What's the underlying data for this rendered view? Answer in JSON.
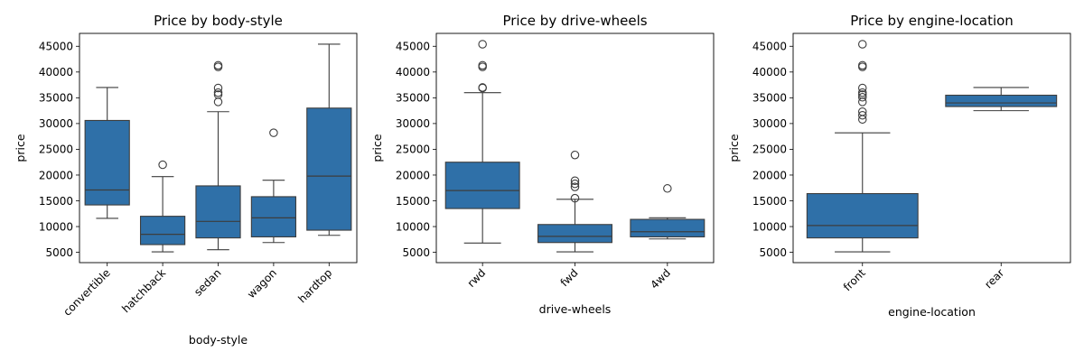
{
  "chart_data": [
    {
      "type": "boxplot",
      "title": "Price by body-style",
      "xlabel": "body-style",
      "ylabel": "price",
      "ylim": [
        3000,
        47500
      ],
      "yticks": [
        5000,
        10000,
        15000,
        20000,
        25000,
        30000,
        35000,
        40000,
        45000
      ],
      "box_color": "#2f70a8",
      "xtick_rotation": 45,
      "categories": [
        "convertible",
        "hatchback",
        "sedan",
        "wagon",
        "hardtop"
      ],
      "boxes": [
        {
          "category": "convertible",
          "whislo": 11600,
          "q1": 14200,
          "median": 17100,
          "q3": 30600,
          "whishi": 37000,
          "fliers": []
        },
        {
          "category": "hatchback",
          "whislo": 5100,
          "q1": 6500,
          "median": 8500,
          "q3": 12000,
          "whishi": 19700,
          "fliers": [
            22000
          ]
        },
        {
          "category": "sedan",
          "whislo": 5500,
          "q1": 7800,
          "median": 11000,
          "q3": 17900,
          "whishi": 32300,
          "fliers": [
            34200,
            35600,
            36000,
            36900,
            41000,
            41300
          ]
        },
        {
          "category": "wagon",
          "whislo": 6900,
          "q1": 8000,
          "median": 11700,
          "q3": 15800,
          "whishi": 19000,
          "fliers": [
            28200
          ]
        },
        {
          "category": "hardtop",
          "whislo": 8300,
          "q1": 9300,
          "median": 19800,
          "q3": 33000,
          "whishi": 45400,
          "fliers": []
        }
      ]
    },
    {
      "type": "boxplot",
      "title": "Price by drive-wheels",
      "xlabel": "drive-wheels",
      "ylabel": "price",
      "ylim": [
        3000,
        47500
      ],
      "yticks": [
        5000,
        10000,
        15000,
        20000,
        25000,
        30000,
        35000,
        40000,
        45000
      ],
      "box_color": "#2f70a8",
      "xtick_rotation": 45,
      "categories": [
        "rwd",
        "fwd",
        "4wd"
      ],
      "boxes": [
        {
          "category": "rwd",
          "whislo": 6800,
          "q1": 13500,
          "median": 17000,
          "q3": 22500,
          "whishi": 36000,
          "fliers": [
            36900,
            37000,
            41000,
            41300,
            45400
          ]
        },
        {
          "category": "fwd",
          "whislo": 5100,
          "q1": 6900,
          "median": 8100,
          "q3": 10400,
          "whishi": 15300,
          "fliers": [
            15500,
            17700,
            18300,
            18900,
            23900
          ]
        },
        {
          "category": "4wd",
          "whislo": 7600,
          "q1": 8000,
          "median": 9000,
          "q3": 11400,
          "whishi": 11700,
          "fliers": [
            17400
          ]
        }
      ]
    },
    {
      "type": "boxplot",
      "title": "Price by engine-location",
      "xlabel": "engine-location",
      "ylabel": "price",
      "ylim": [
        3000,
        47500
      ],
      "yticks": [
        5000,
        10000,
        15000,
        20000,
        25000,
        30000,
        35000,
        40000,
        45000
      ],
      "box_color": "#2f70a8",
      "xtick_rotation": 45,
      "categories": [
        "front",
        "rear"
      ],
      "boxes": [
        {
          "category": "front",
          "whislo": 5100,
          "q1": 7800,
          "median": 10200,
          "q3": 16400,
          "whishi": 28200,
          "fliers": [
            30800,
            31600,
            32300,
            34200,
            35100,
            35600,
            36000,
            36900,
            41000,
            41300,
            45400
          ]
        },
        {
          "category": "rear",
          "whislo": 32500,
          "q1": 33300,
          "median": 34000,
          "q3": 35500,
          "whishi": 37000,
          "fliers": []
        }
      ]
    }
  ]
}
